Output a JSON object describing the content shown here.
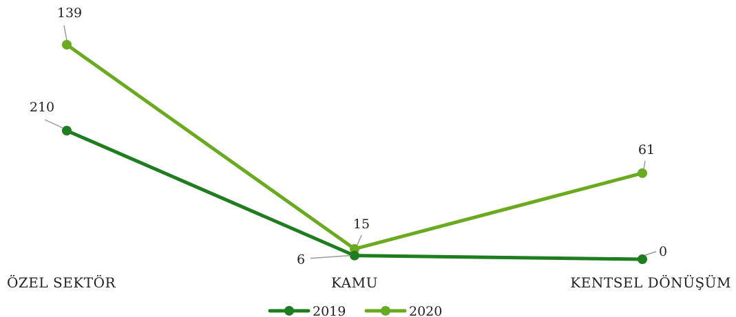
{
  "chart_data": {
    "type": "line",
    "categories": [
      "ÖZEL SEKTÖR",
      "KAMU",
      "KENTSEL DÖNÜŞÜM"
    ],
    "series": [
      {
        "name": "2019",
        "values": [
          210,
          6,
          0
        ],
        "color": "#1e7d1e"
      },
      {
        "name": "2020",
        "values": [
          139,
          15,
          61
        ],
        "color": "#6aaa1e"
      }
    ],
    "legend_position": "bottom",
    "grid": false,
    "axis_lines": false
  }
}
